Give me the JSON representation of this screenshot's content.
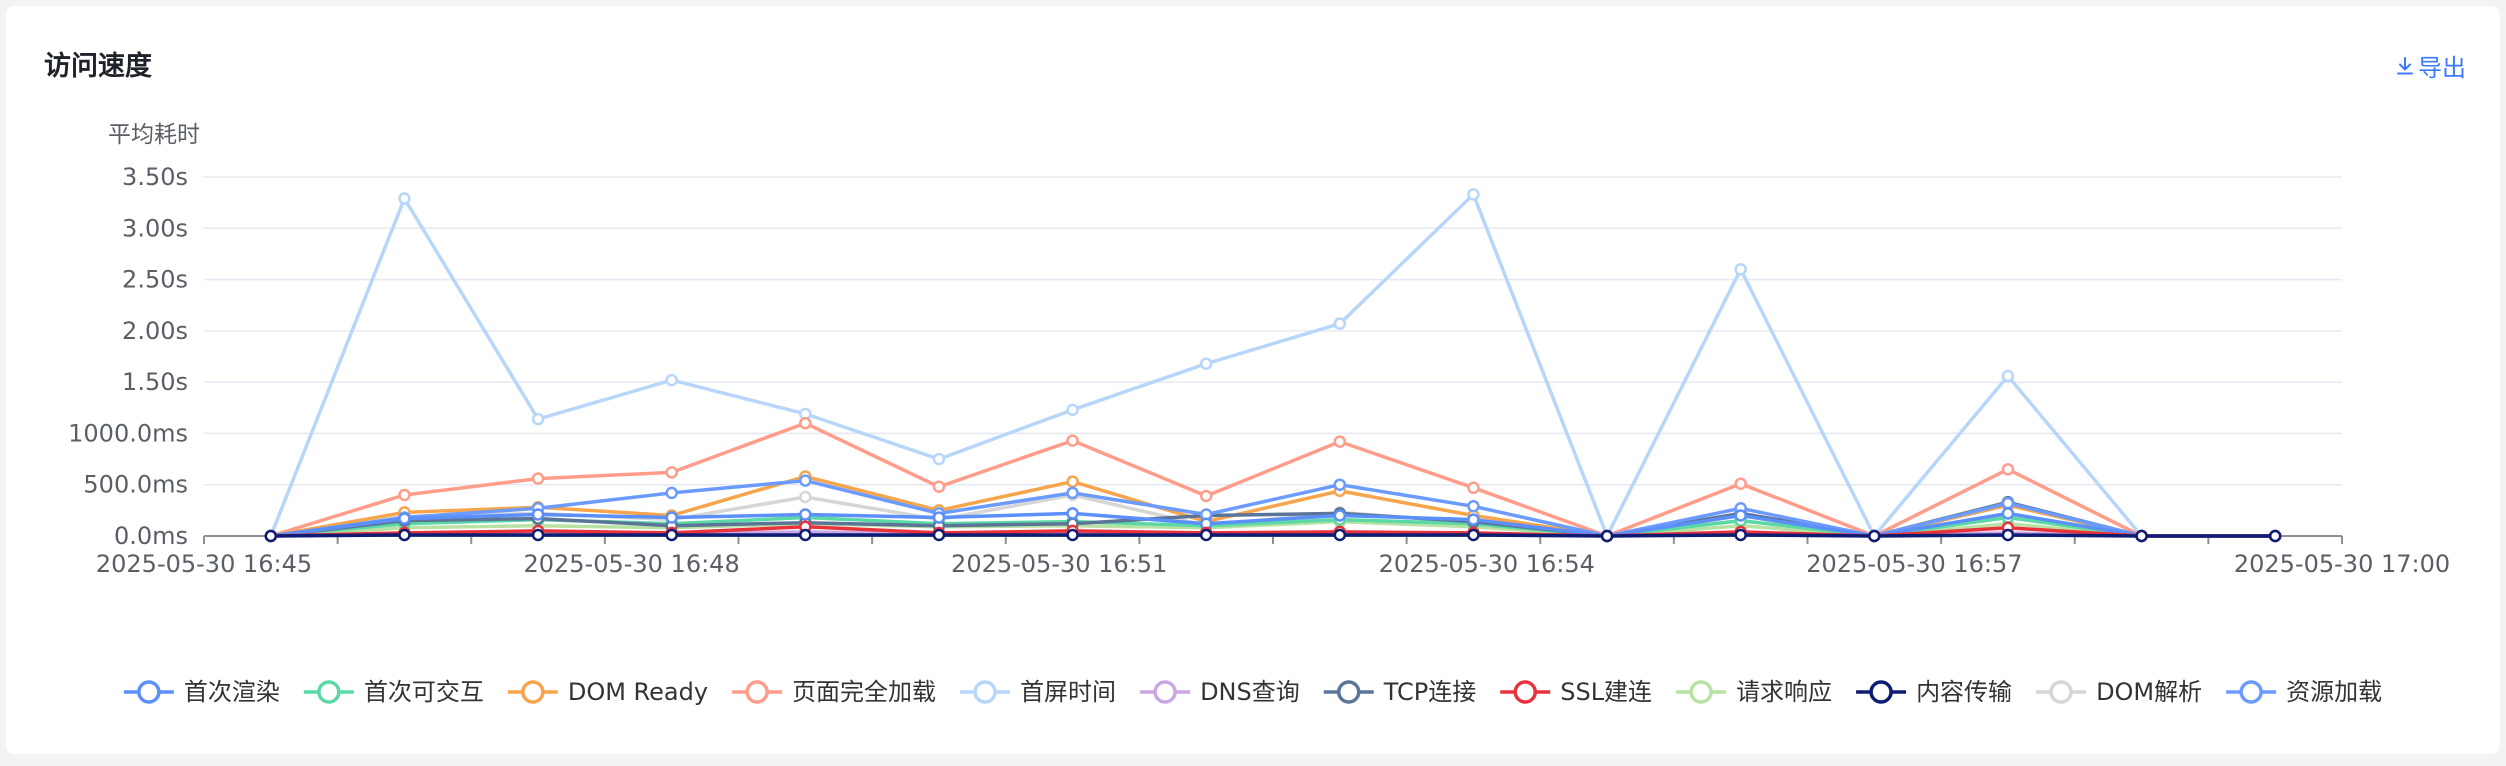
{
  "header": {
    "title": "访问速度",
    "export_label": "导出"
  },
  "chart_data": {
    "type": "line",
    "ylabel": "平均耗时",
    "y_ticks": [
      "0.0ms",
      "500.0ms",
      "1000.0ms",
      "1.50s",
      "2.00s",
      "2.50s",
      "3.00s",
      "3.50s"
    ],
    "ylim": [
      0,
      3.5
    ],
    "y_unit": "s",
    "x_ticks": [
      "2025-05-30 16:45",
      "2025-05-30 16:48",
      "2025-05-30 16:51",
      "2025-05-30 16:54",
      "2025-05-30 16:57",
      "2025-05-30 17:00"
    ],
    "x": [
      "16:45",
      "16:46",
      "16:47",
      "16:48",
      "16:49",
      "16:50",
      "16:51",
      "16:52",
      "16:53",
      "16:54",
      "16:55",
      "16:56",
      "16:57",
      "16:58",
      "16:59",
      "17:00"
    ],
    "xlim_minutes": [
      0,
      16
    ],
    "x_offset_minutes": 0.5,
    "grid": true,
    "legend_position": "bottom",
    "series": [
      {
        "name": "首次渲染",
        "color": "#5b8ff9",
        "values": [
          0,
          0.17,
          0.21,
          0.18,
          0.21,
          0.18,
          0.22,
          0.12,
          0.2,
          0.16,
          0,
          0.2,
          0,
          0.22,
          0,
          0
        ]
      },
      {
        "name": "首次可交互",
        "color": "#5ad8a6",
        "values": [
          0,
          0.12,
          0.16,
          0.12,
          0.18,
          0.12,
          0.14,
          0.1,
          0.16,
          0.12,
          0,
          0.15,
          0,
          0.18,
          0,
          0
        ]
      },
      {
        "name": "DOM Ready",
        "color": "#f6a54c",
        "values": [
          0,
          0.23,
          0.28,
          0.2,
          0.58,
          0.25,
          0.53,
          0.14,
          0.44,
          0.2,
          0,
          0.2,
          0,
          0.3,
          0,
          0
        ]
      },
      {
        "name": "页面完全加载",
        "color": "#ff9d8a",
        "values": [
          0,
          0.4,
          0.56,
          0.62,
          1.1,
          0.48,
          0.93,
          0.39,
          0.92,
          0.47,
          0,
          0.51,
          0,
          0.65,
          0,
          0
        ]
      },
      {
        "name": "首屏时间",
        "color": "#b7d6fa",
        "values": [
          0,
          3.29,
          1.14,
          1.52,
          1.19,
          0.75,
          1.23,
          1.68,
          2.07,
          3.33,
          0,
          2.6,
          0,
          1.56,
          0,
          0
        ]
      },
      {
        "name": "DNS查询",
        "color": "#c9a7e6",
        "values": [
          0,
          0.02,
          0.03,
          0.02,
          0.04,
          0.02,
          0.02,
          0.02,
          0.03,
          0.02,
          0,
          0.02,
          0,
          0.03,
          0,
          0
        ]
      },
      {
        "name": "TCP连接",
        "color": "#5b7599",
        "values": [
          0,
          0.15,
          0.17,
          0.1,
          0.13,
          0.1,
          0.12,
          0.2,
          0.22,
          0.14,
          0,
          0.22,
          0,
          0.33,
          0,
          0
        ]
      },
      {
        "name": "SSL建连",
        "color": "#e8323c",
        "values": [
          0,
          0.03,
          0.05,
          0.03,
          0.09,
          0.03,
          0.05,
          0.03,
          0.04,
          0.03,
          0,
          0.04,
          0,
          0.08,
          0,
          0
        ]
      },
      {
        "name": "请求响应",
        "color": "#b8e2a3",
        "values": [
          0,
          0.08,
          0.1,
          0.08,
          0.12,
          0.09,
          0.1,
          0.08,
          0.14,
          0.09,
          0,
          0.1,
          0,
          0.12,
          0,
          0
        ]
      },
      {
        "name": "内容传输",
        "color": "#0f1c73",
        "values": [
          0,
          0.01,
          0.01,
          0.01,
          0.01,
          0.01,
          0.01,
          0.01,
          0.01,
          0.01,
          0,
          0.01,
          0,
          0.01,
          0,
          0
        ]
      },
      {
        "name": "DOM解析",
        "color": "#d6d6d6",
        "values": [
          0,
          0.19,
          0.22,
          0.16,
          0.38,
          0.16,
          0.4,
          0.1,
          0.23,
          0.13,
          0,
          0.15,
          0,
          0.2,
          0,
          0
        ]
      },
      {
        "name": "资源加载",
        "color": "#6b9bff",
        "values": [
          0,
          0.18,
          0.27,
          0.42,
          0.54,
          0.22,
          0.42,
          0.21,
          0.5,
          0.29,
          0,
          0.27,
          0,
          0.32,
          0,
          0
        ]
      }
    ]
  }
}
